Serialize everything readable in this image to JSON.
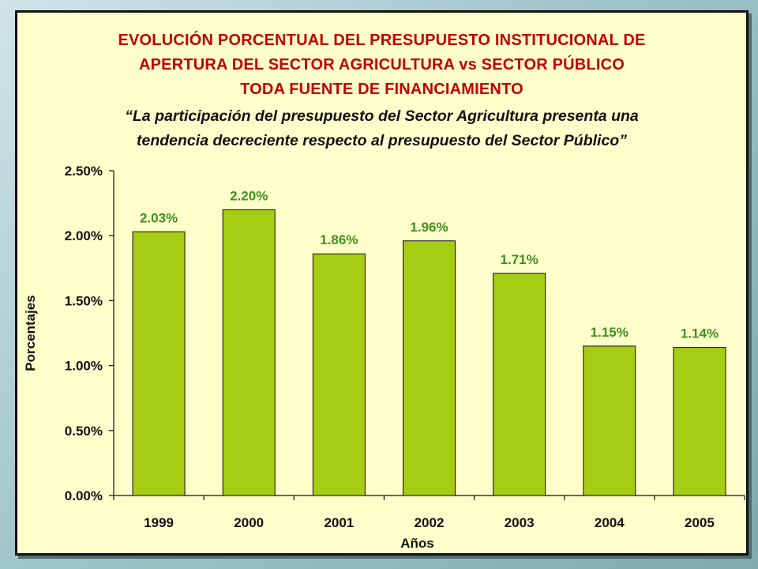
{
  "title_lines": [
    "EVOLUCIÓN PORCENTUAL DEL PRESUPUESTO INSTITUCIONAL DE",
    "APERTURA DEL SECTOR AGRICULTURA vs SECTOR PÚBLICO",
    "TODA FUENTE DE FINANCIAMIENTO"
  ],
  "subtitle_lines": [
    "“La participación del presupuesto del Sector Agricultura presenta una",
    "tendencia decreciente respecto al presupuesto del Sector Público”"
  ],
  "colors": {
    "bar": "#a6cc14",
    "bar_stroke": "#111111",
    "data_label": "#3f8f1c",
    "title": "#c00000",
    "panel": "#ffffcc"
  },
  "chart_data": {
    "type": "bar",
    "categories": [
      "1999",
      "2000",
      "2001",
      "2002",
      "2003",
      "2004",
      "2005"
    ],
    "values": [
      2.03,
      2.2,
      1.86,
      1.96,
      1.71,
      1.15,
      1.14
    ],
    "data_labels": [
      "2.03%",
      "2.20%",
      "1.86%",
      "1.96%",
      "1.71%",
      "1.15%",
      "1.14%"
    ],
    "yticks": [
      0,
      0.5,
      1.0,
      1.5,
      2.0,
      2.5
    ],
    "ytick_labels": [
      "0.00%",
      "0.50%",
      "1.00%",
      "1.50%",
      "2.00%",
      "2.50%"
    ],
    "ylim": [
      0,
      2.5
    ],
    "xlabel": "Años",
    "ylabel": "Porcentajes",
    "grid": false,
    "legend": "none"
  }
}
